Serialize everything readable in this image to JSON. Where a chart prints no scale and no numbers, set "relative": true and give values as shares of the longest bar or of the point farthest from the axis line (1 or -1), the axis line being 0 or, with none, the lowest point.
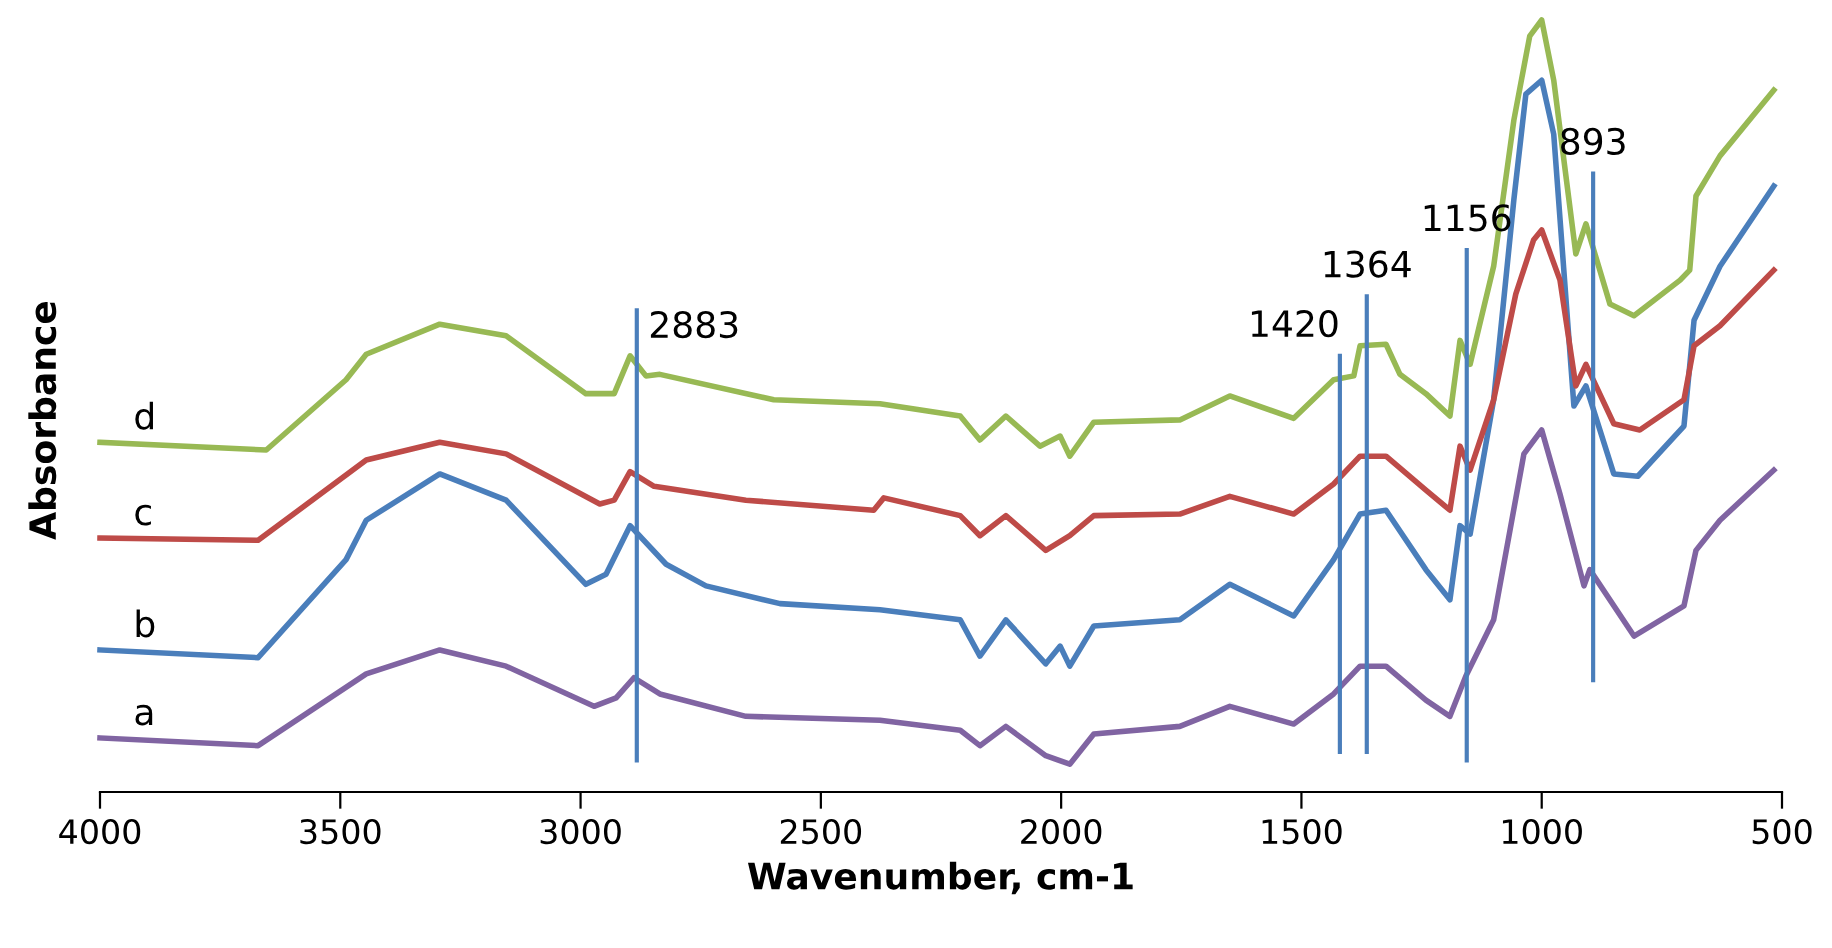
{
  "chart_data": {
    "type": "line",
    "relative": true,
    "xlabel": "Wavenumber, cm-1",
    "ylabel": "Absorbance",
    "xlim": [
      4000,
      500
    ],
    "xticks": [
      4000,
      3500,
      3000,
      2500,
      2000,
      1500,
      1000,
      500
    ],
    "grid": false,
    "legend": false,
    "marker": "none",
    "line_style": "solid",
    "series": [
      {
        "name": "a",
        "color": "#8064a2",
        "x": [
          4000,
          3671,
          3446,
          3293,
          3155,
          2972,
          2926,
          2889,
          2835,
          2656,
          2377,
          2210,
          2169,
          2115,
          2032,
          1982,
          1932,
          1753,
          1649,
          1516,
          1433,
          1378,
          1324,
          1241,
          1191,
          1158,
          1100,
          1037,
          1000,
          962,
          912,
          900,
          808,
          704,
          679,
          629,
          517
        ],
        "values": [
          0.07,
          0.06,
          0.153,
          0.184,
          0.163,
          0.111,
          0.122,
          0.148,
          0.127,
          0.098,
          0.093,
          0.08,
          0.06,
          0.085,
          0.047,
          0.036,
          0.075,
          0.085,
          0.111,
          0.088,
          0.127,
          0.163,
          0.163,
          0.119,
          0.098,
          0.15,
          0.223,
          0.438,
          0.469,
          0.386,
          0.267,
          0.288,
          0.202,
          0.241,
          0.313,
          0.352,
          0.417
        ]
      },
      {
        "name": "b",
        "color": "#4a7ebb",
        "x": [
          4000,
          3671,
          3488,
          3446,
          3293,
          3155,
          2989,
          2947,
          2897,
          2822,
          2739,
          2585,
          2377,
          2210,
          2169,
          2115,
          2032,
          2002,
          1982,
          1932,
          1753,
          1649,
          1516,
          1433,
          1378,
          1324,
          1241,
          1191,
          1170,
          1149,
          1100,
          1058,
          1033,
          1000,
          975,
          933,
          908,
          850,
          800,
          704,
          683,
          629,
          517
        ],
        "values": [
          0.184,
          0.174,
          0.301,
          0.352,
          0.412,
          0.378,
          0.269,
          0.282,
          0.345,
          0.295,
          0.267,
          0.244,
          0.236,
          0.223,
          0.176,
          0.223,
          0.166,
          0.189,
          0.163,
          0.215,
          0.223,
          0.269,
          0.228,
          0.301,
          0.36,
          0.365,
          0.288,
          0.249,
          0.345,
          0.334,
          0.508,
          0.767,
          0.904,
          0.922,
          0.852,
          0.5,
          0.526,
          0.412,
          0.409,
          0.474,
          0.611,
          0.681,
          0.785
        ]
      },
      {
        "name": "c",
        "color": "#be4b48",
        "x": [
          4000,
          3671,
          3446,
          3293,
          3155,
          2960,
          2930,
          2897,
          2847,
          2656,
          2390,
          2369,
          2210,
          2169,
          2115,
          2032,
          1982,
          1932,
          1753,
          1649,
          1516,
          1433,
          1378,
          1324,
          1241,
          1191,
          1170,
          1149,
          1100,
          1054,
          1017,
          1000,
          962,
          929,
          908,
          850,
          796,
          704,
          683,
          629,
          517
        ],
        "values": [
          0.329,
          0.326,
          0.43,
          0.453,
          0.438,
          0.373,
          0.378,
          0.415,
          0.396,
          0.378,
          0.365,
          0.381,
          0.358,
          0.332,
          0.358,
          0.313,
          0.332,
          0.358,
          0.36,
          0.383,
          0.36,
          0.399,
          0.435,
          0.435,
          0.391,
          0.365,
          0.448,
          0.417,
          0.508,
          0.645,
          0.715,
          0.728,
          0.663,
          0.526,
          0.554,
          0.477,
          0.469,
          0.508,
          0.578,
          0.604,
          0.676
        ]
      },
      {
        "name": "d",
        "color": "#98b954",
        "x": [
          4000,
          3654,
          3488,
          3446,
          3293,
          3155,
          2989,
          2930,
          2897,
          2864,
          2835,
          2598,
          2377,
          2210,
          2169,
          2115,
          2044,
          2002,
          1982,
          1932,
          1753,
          1649,
          1516,
          1433,
          1391,
          1378,
          1324,
          1295,
          1241,
          1191,
          1170,
          1149,
          1100,
          1058,
          1025,
          1000,
          975,
          929,
          908,
          858,
          808,
          712,
          692,
          679,
          629,
          517
        ],
        "values": [
          0.453,
          0.443,
          0.534,
          0.567,
          0.606,
          0.591,
          0.516,
          0.516,
          0.565,
          0.539,
          0.541,
          0.508,
          0.503,
          0.487,
          0.456,
          0.487,
          0.448,
          0.461,
          0.435,
          0.479,
          0.482,
          0.513,
          0.484,
          0.534,
          0.539,
          0.578,
          0.58,
          0.541,
          0.516,
          0.487,
          0.585,
          0.554,
          0.681,
          0.87,
          0.979,
          1.0,
          0.922,
          0.697,
          0.736,
          0.632,
          0.617,
          0.663,
          0.676,
          0.772,
          0.824,
          0.909
        ]
      }
    ],
    "ref_lines": [
      {
        "axis": "x",
        "value": 2883,
        "label": "2883",
        "color": "#4a7ebb"
      },
      {
        "axis": "x",
        "value": 1420,
        "label": "1420",
        "color": "#4a7ebb"
      },
      {
        "axis": "x",
        "value": 1364,
        "label": "1364",
        "color": "#4a7ebb"
      },
      {
        "axis": "x",
        "value": 1156,
        "label": "1156",
        "color": "#4a7ebb"
      },
      {
        "axis": "x",
        "value": 893,
        "label": "893",
        "color": "#4a7ebb"
      }
    ]
  }
}
